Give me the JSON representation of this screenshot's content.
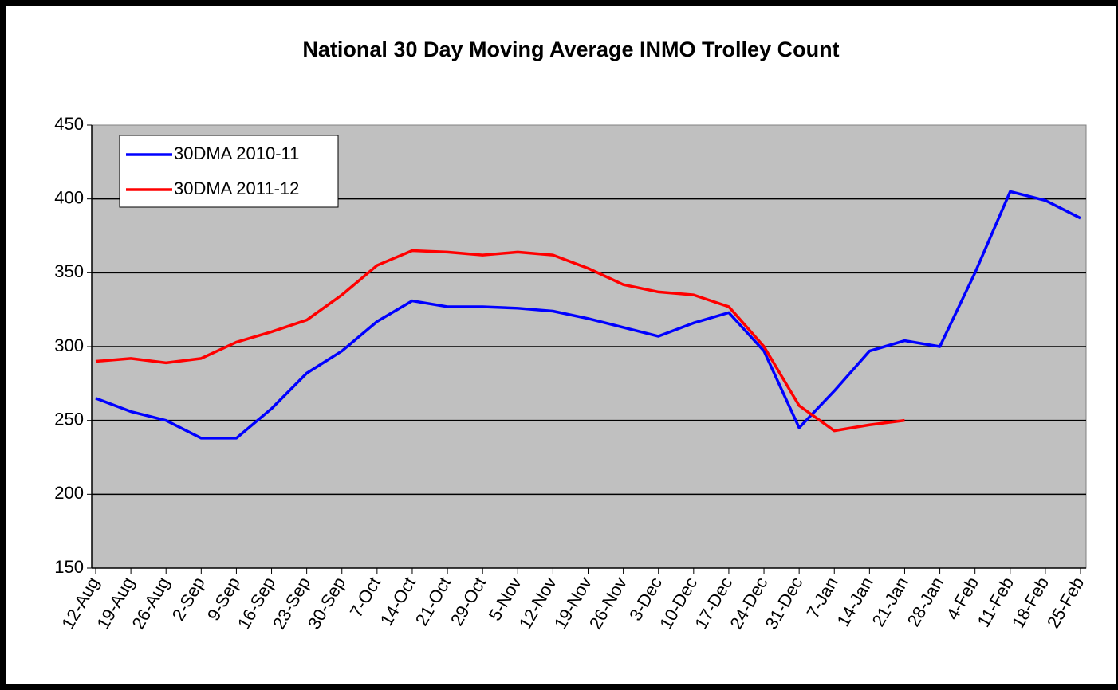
{
  "chart_data": {
    "type": "line",
    "title": "National 30 Day Moving Average INMO Trolley Count",
    "categories": [
      "12-Aug",
      "19-Aug",
      "26-Aug",
      "2-Sep",
      "9-Sep",
      "16-Sep",
      "23-Sep",
      "30-Sep",
      "7-Oct",
      "14-Oct",
      "21-Oct",
      "29-Oct",
      "5-Nov",
      "12-Nov",
      "19-Nov",
      "26-Nov",
      "3-Dec",
      "10-Dec",
      "17-Dec",
      "24-Dec",
      "31-Dec",
      "7-Jan",
      "14-Jan",
      "21-Jan",
      "28-Jan",
      "4-Feb",
      "11-Feb",
      "18-Feb",
      "25-Feb"
    ],
    "series": [
      {
        "name": "30DMA 2010-11",
        "color": "#0000ff",
        "values": [
          265,
          256,
          250,
          238,
          238,
          258,
          282,
          297,
          317,
          331,
          327,
          327,
          326,
          324,
          319,
          313,
          307,
          316,
          323,
          297,
          245,
          270,
          297,
          304,
          300,
          350,
          405,
          399,
          387
        ]
      },
      {
        "name": "30DMA 2011-12",
        "color": "#ff0000",
        "values": [
          290,
          292,
          289,
          292,
          303,
          310,
          318,
          335,
          355,
          365,
          364,
          362,
          364,
          362,
          353,
          342,
          337,
          335,
          327,
          300,
          260,
          243,
          247,
          250,
          null,
          null,
          null,
          null,
          null
        ]
      }
    ],
    "ylim": [
      150,
      450
    ],
    "yticks": [
      150,
      200,
      250,
      300,
      350,
      400,
      450
    ],
    "grid": true,
    "legend": "top-left"
  }
}
